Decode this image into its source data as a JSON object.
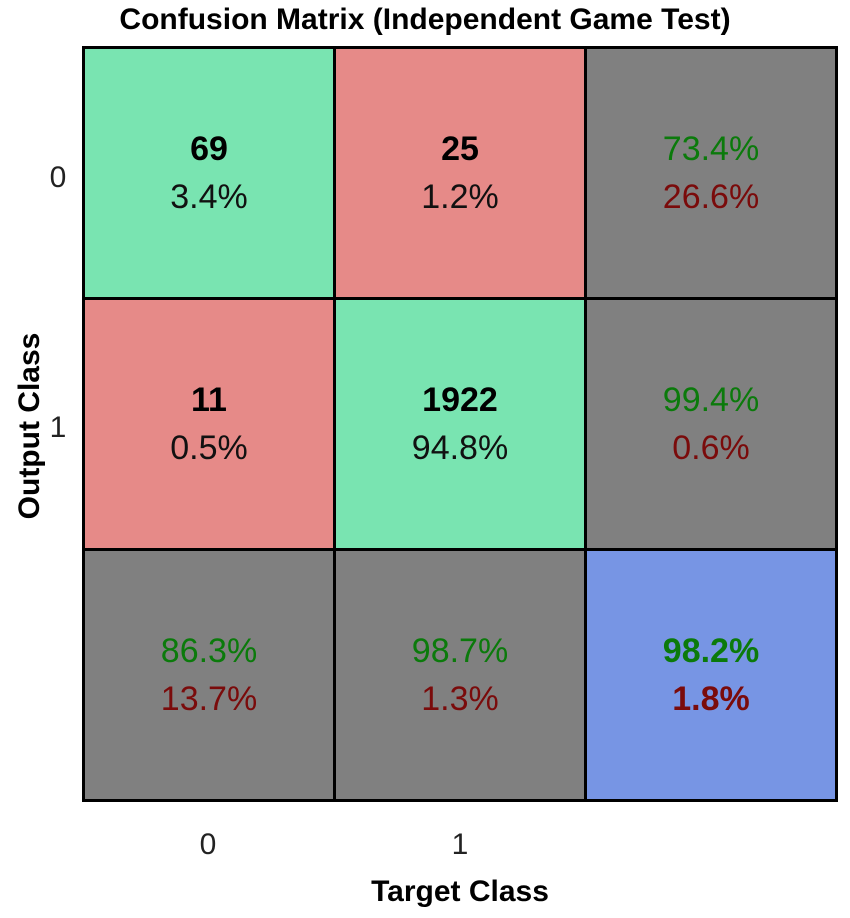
{
  "chart_data": {
    "type": "heatmap",
    "title": "Confusion Matrix (Independent Game Test)",
    "xlabel": "Target Class",
    "ylabel": "Output Class",
    "x_tick_labels": [
      "0",
      "1"
    ],
    "y_tick_labels": [
      "0",
      "1"
    ],
    "cells": [
      {
        "count": "69",
        "percent": "3.4%"
      },
      {
        "count": "25",
        "percent": "1.2%"
      },
      {
        "count": "11",
        "percent": "0.5%"
      },
      {
        "count": "1922",
        "percent": "94.8%"
      }
    ],
    "row_summary": [
      {
        "correct": "73.4%",
        "error": "26.6%"
      },
      {
        "correct": "99.4%",
        "error": "0.6%"
      }
    ],
    "col_summary": [
      {
        "correct": "86.3%",
        "error": "13.7%"
      },
      {
        "correct": "98.7%",
        "error": "1.3%"
      }
    ],
    "overall": {
      "correct": "98.2%",
      "error": "1.8%"
    },
    "colors": {
      "correct_cell": "#79e4b1",
      "incorrect_cell": "#e68a88",
      "summary_cell": "#808080",
      "overall_cell": "#7795e4",
      "correct_text": "#0b7a0b",
      "error_text": "#7a0b0b"
    }
  }
}
